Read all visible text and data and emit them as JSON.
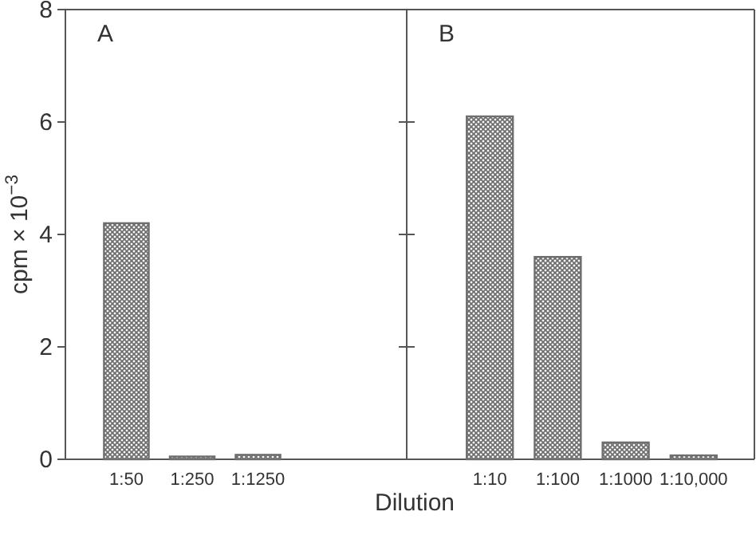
{
  "chart_data": [
    {
      "type": "bar",
      "categories": [
        "1:50",
        "1:250",
        "1:1250"
      ],
      "values": [
        4.2,
        0.05,
        0.08
      ],
      "color": "#6e6e6e",
      "ylim": [
        0,
        8
      ],
      "yticks": [
        0,
        2,
        4,
        6,
        8
      ],
      "ylabel": "cpm × 10$^{−3}$",
      "xlabel": "Dilution",
      "annotations": [
        "A"
      ],
      "grid": false
    },
    {
      "type": "bar",
      "categories": [
        "1:10",
        "1:100",
        "1:1000",
        "1:10,000"
      ],
      "values": [
        6.1,
        3.6,
        0.3,
        0.07
      ],
      "color": "#6e6e6e",
      "ylim": [
        0,
        8
      ],
      "yticks": [
        0,
        2,
        4,
        6,
        8
      ],
      "annotations": [
        "B"
      ],
      "tick_labels": "x",
      "grid": false
    }
  ]
}
